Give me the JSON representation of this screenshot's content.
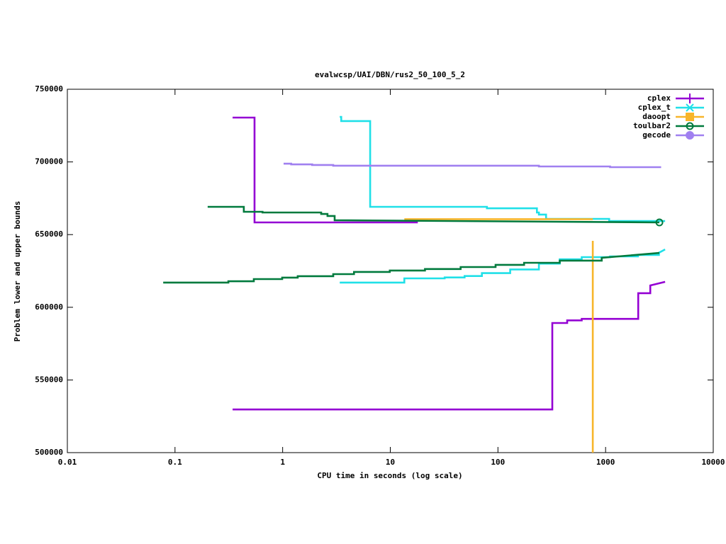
{
  "chart_data": {
    "type": "line",
    "title": "evalwcsp/UAI/DBN/rus2_50_100_5_2",
    "x_label": "CPU time in seconds (log scale)",
    "y_label": "Problem lower and upper bounds",
    "x_log": true,
    "xlim": [
      0.01,
      10000
    ],
    "xticks": [
      0.01,
      0.1,
      1,
      10,
      100,
      1000,
      10000
    ],
    "ylim": [
      500000,
      750000
    ],
    "yticks": [
      500000,
      550000,
      600000,
      650000,
      700000,
      750000
    ],
    "legend": "top-right",
    "series": [
      {
        "name": "cplex",
        "color": "#9400d3",
        "marker": "plus",
        "lines": [
          {
            "x": [
              0.343,
              0.548,
              0.548,
              18
            ],
            "y": [
              730500,
              730500,
              658400,
              658400
            ]
          },
          {
            "x": [
              0.343,
              320,
              320,
              440,
              440,
              600,
              600,
              2010,
              2010,
              2600,
              2600,
              3570
            ],
            "y": [
              529700,
              529700,
              589200,
              589200,
              591000,
              591000,
              592000,
              592000,
              609700,
              609700,
              615000,
              617500
            ]
          }
        ]
      },
      {
        "name": "cplex_t",
        "color": "#20e0e8",
        "marker": "cross",
        "lines": [
          {
            "x": [
              3.39,
              3.5,
              3.5,
              6.5,
              6.5,
              79,
              79,
              230,
              230,
              240,
              240,
              280,
              280,
              1080,
              1080,
              3570
            ],
            "y": [
              731000,
              731000,
              728100,
              728100,
              669100,
              669100,
              668100,
              668100,
              665200,
              665200,
              663800,
              663800,
              660800,
              660800,
              659300,
              659300
            ]
          },
          {
            "x": [
              3.39,
              13.5,
              13.5,
              32,
              32,
              49,
              49,
              71,
              71,
              130,
              130,
              240,
              240,
              375,
              375,
              600,
              600,
              1100,
              1100,
              2000,
              2000,
              3130,
              3130,
              3570
            ],
            "y": [
              617000,
              617000,
              619900,
              619900,
              620500,
              620500,
              621500,
              621500,
              623500,
              623500,
              626000,
              626000,
              630000,
              630000,
              633000,
              633000,
              634500,
              634500,
              635000,
              635000,
              636000,
              636000,
              637500,
              639800
            ]
          }
        ]
      },
      {
        "name": "daoopt",
        "color": "#f7b52a",
        "marker": "square",
        "lines": [
          {
            "x": [
              13.5,
              760
            ],
            "y": [
              660600,
              660600
            ]
          },
          {
            "x": [
              760,
              760
            ],
            "y": [
              645700,
              500000
            ]
          }
        ]
      },
      {
        "name": "toulbar2",
        "color": "#007a3d",
        "marker": "circle",
        "end_marker": true,
        "lines": [
          {
            "x": [
              0.201,
              0.436,
              0.436,
              0.65,
              0.65,
              2.28,
              2.28,
              2.61,
              2.61,
              3.04,
              3.04,
              3160
            ],
            "y": [
              669100,
              669100,
              665700,
              665700,
              665200,
              665200,
              664200,
              664200,
              662800,
              662800,
              659900,
              658400
            ]
          },
          {
            "x": [
              0.0777,
              0.313,
              0.313,
              0.54,
              0.54,
              0.99,
              0.99,
              1.38,
              1.38,
              2.95,
              2.95,
              4.6,
              4.6,
              9.9,
              9.9,
              21,
              21,
              45,
              45,
              95,
              95,
              175,
              175,
              375,
              375,
              920,
              920,
              3160
            ],
            "y": [
              617000,
              617000,
              617900,
              617900,
              619400,
              619400,
              620400,
              620400,
              621400,
              621400,
              622800,
              622800,
              624300,
              624300,
              625300,
              625300,
              626300,
              626300,
              627700,
              627700,
              629200,
              629200,
              630600,
              630600,
              632100,
              632100,
              634000,
              637400
            ]
          }
        ]
      },
      {
        "name": "gecode",
        "color": "#a080f0",
        "marker": "dot",
        "lines": [
          {
            "x": [
              1.02,
              1.2,
              1.2,
              1.88,
              1.88,
              2.95,
              2.95,
              240,
              240,
              1100,
              1100,
              3280
            ],
            "y": [
              698800,
              698800,
              698300,
              698300,
              697900,
              697900,
              697400,
              697400,
              696900,
              696900,
              696400,
              696400
            ]
          }
        ]
      }
    ]
  }
}
